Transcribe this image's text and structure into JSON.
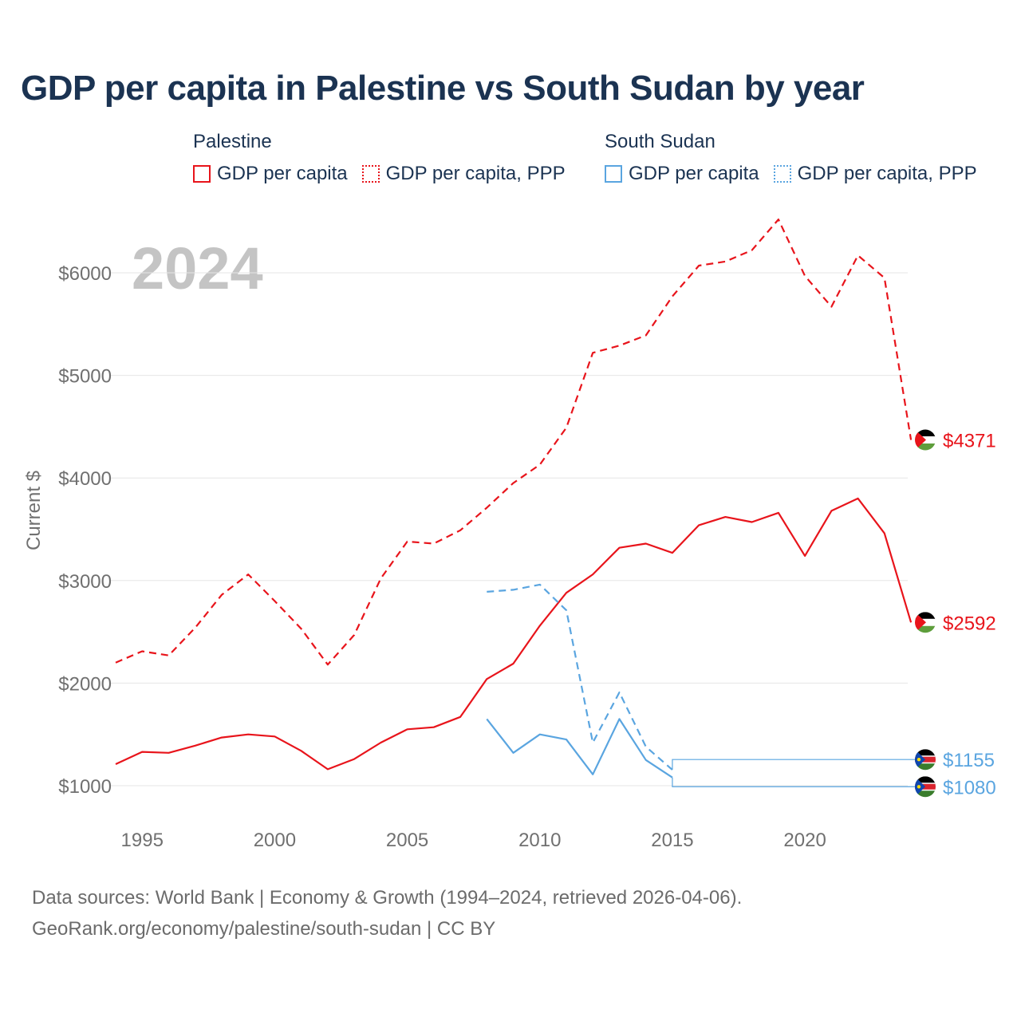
{
  "title": "GDP per capita in Palestine vs South Sudan by year",
  "legend": {
    "groups": [
      {
        "name": "Palestine",
        "color": "#e8141b",
        "items": [
          "GDP per capita",
          "GDP per capita, PPP"
        ]
      },
      {
        "name": "South Sudan",
        "color": "#5aa5e0",
        "items": [
          "GDP per capita",
          "GDP per capita, PPP"
        ]
      }
    ]
  },
  "year_watermark": "2024",
  "sources": {
    "line1": "Data sources: World Bank | Economy & Growth (1994–2024, retrieved 2026-04-06).",
    "line2": "GeoRank.org/economy/palestine/south-sudan | CC BY"
  },
  "chart_data": {
    "type": "line",
    "title": "GDP per capita in Palestine vs South Sudan by year",
    "xlabel": "",
    "ylabel": "Current $",
    "xlim": [
      1994,
      2024.6
    ],
    "ylim": [
      650,
      6700
    ],
    "xticks": [
      1995,
      2000,
      2005,
      2010,
      2015,
      2020
    ],
    "yticks": [
      1000,
      2000,
      3000,
      4000,
      5000,
      6000
    ],
    "ytick_labels": [
      "$1000",
      "$2000",
      "$3000",
      "$4000",
      "$5000",
      "$6000"
    ],
    "grid": true,
    "series": [
      {
        "name": "Palestine GDP per capita, PPP",
        "color": "#e8141b",
        "dashed": true,
        "x": [
          1994,
          1995,
          1996,
          1997,
          1998,
          1999,
          2000,
          2001,
          2002,
          2003,
          2004,
          2005,
          2006,
          2007,
          2008,
          2009,
          2010,
          2011,
          2012,
          2013,
          2014,
          2015,
          2016,
          2017,
          2018,
          2019,
          2020,
          2021,
          2022,
          2023,
          2024
        ],
        "values": [
          2200,
          2310,
          2270,
          2540,
          2860,
          3060,
          2800,
          2530,
          2180,
          2470,
          3020,
          3380,
          3360,
          3490,
          3710,
          3950,
          4130,
          4490,
          5220,
          5290,
          5390,
          5770,
          6070,
          6110,
          6220,
          6520,
          5970,
          5670,
          6170,
          5950,
          4371
        ],
        "end_label": "$4371"
      },
      {
        "name": "Palestine GDP per capita",
        "color": "#e8141b",
        "dashed": false,
        "x": [
          1994,
          1995,
          1996,
          1997,
          1998,
          1999,
          2000,
          2001,
          2002,
          2003,
          2004,
          2005,
          2006,
          2007,
          2008,
          2009,
          2010,
          2011,
          2012,
          2013,
          2014,
          2015,
          2016,
          2017,
          2018,
          2019,
          2020,
          2021,
          2022,
          2023,
          2024
        ],
        "values": [
          1210,
          1330,
          1320,
          1390,
          1470,
          1500,
          1480,
          1340,
          1160,
          1260,
          1420,
          1550,
          1570,
          1670,
          2040,
          2190,
          2560,
          2880,
          3060,
          3320,
          3360,
          3270,
          3540,
          3620,
          3570,
          3660,
          3240,
          3680,
          3800,
          3460,
          2592
        ],
        "end_label": "$2592"
      },
      {
        "name": "South Sudan GDP per capita, PPP",
        "color": "#5aa5e0",
        "dashed": true,
        "x": [
          2008,
          2009,
          2010,
          2011,
          2012,
          2013,
          2014,
          2015
        ],
        "values": [
          2890,
          2910,
          2960,
          2710,
          1420,
          1910,
          1380,
          1155
        ],
        "end_label": "$1155"
      },
      {
        "name": "South Sudan GDP per capita",
        "color": "#5aa5e0",
        "dashed": false,
        "x": [
          2008,
          2009,
          2010,
          2011,
          2012,
          2013,
          2014,
          2015
        ],
        "values": [
          1650,
          1320,
          1500,
          1450,
          1110,
          1650,
          1250,
          1080
        ],
        "end_label": "$1080"
      }
    ]
  }
}
